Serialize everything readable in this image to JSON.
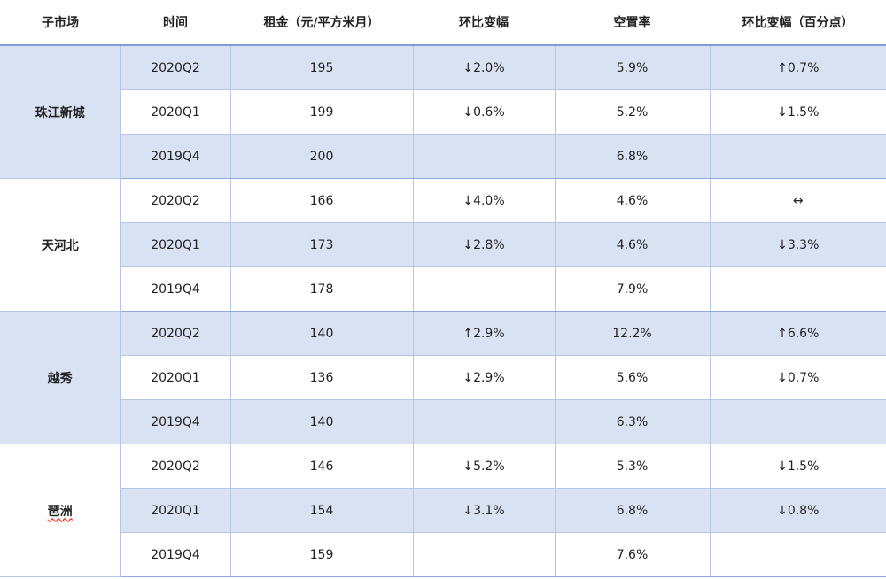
{
  "headers": [
    "子市场",
    "时间",
    "租金（元/平方米月）",
    "环比变幅",
    "空置率",
    "环比变幅（百分点）"
  ],
  "groups": [
    {
      "market": "珠江新城",
      "rows": [
        {
          "time": "2020Q2",
          "rent": "195",
          "rent_change": "↓2.0%",
          "vacancy": "5.9%",
          "vacancy_change": "↑0.7%"
        },
        {
          "time": "2020Q1",
          "rent": "199",
          "rent_change": "↓0.6%",
          "vacancy": "5.2%",
          "vacancy_change": "↓1.5%"
        },
        {
          "time": "2019Q4",
          "rent": "200",
          "rent_change": "",
          "vacancy": "6.8%",
          "vacancy_change": ""
        }
      ]
    },
    {
      "market": "天河北",
      "rows": [
        {
          "time": "2020Q2",
          "rent": "166",
          "rent_change": "↓4.0%",
          "vacancy": "4.6%",
          "vacancy_change": "↔"
        },
        {
          "time": "2020Q1",
          "rent": "173",
          "rent_change": "↓2.8%",
          "vacancy": "4.6%",
          "vacancy_change": "↓3.3%"
        },
        {
          "time": "2019Q4",
          "rent": "178",
          "rent_change": "",
          "vacancy": "7.9%",
          "vacancy_change": ""
        }
      ]
    },
    {
      "market": "越秀",
      "rows": [
        {
          "time": "2020Q2",
          "rent": "140",
          "rent_change": "↑2.9%",
          "vacancy": "12.2%",
          "vacancy_change": "↑6.6%"
        },
        {
          "time": "2020Q1",
          "rent": "136",
          "rent_change": "↓2.9%",
          "vacancy": "5.6%",
          "vacancy_change": "↓0.7%"
        },
        {
          "time": "2019Q4",
          "rent": "140",
          "rent_change": "",
          "vacancy": "6.3%",
          "vacancy_change": ""
        }
      ]
    },
    {
      "market": "琶洲",
      "rows": [
        {
          "time": "2020Q2",
          "rent": "146",
          "rent_change": "↓5.2%",
          "vacancy": "5.3%",
          "vacancy_change": "↓1.5%"
        },
        {
          "time": "2020Q1",
          "rent": "154",
          "rent_change": "↓3.1%",
          "vacancy": "6.8%",
          "vacancy_change": "↓0.8%"
        },
        {
          "time": "2019Q4",
          "rent": "159",
          "rent_change": "",
          "vacancy": "7.6%",
          "vacancy_change": ""
        }
      ]
    }
  ],
  "colors": {
    "shade": "#d9e2f3",
    "border": "#b5c6e6",
    "header_rule": "#7f9dd0"
  }
}
